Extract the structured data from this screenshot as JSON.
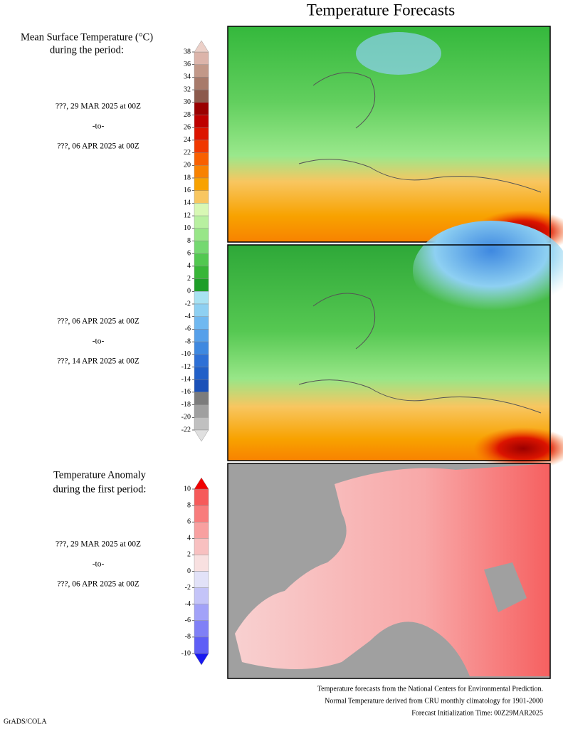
{
  "title": "Temperature Forecasts",
  "temperature_legend": {
    "title_lines": [
      "Mean Surface Temperature (°C)",
      "during the period:"
    ],
    "ticks": [
      38,
      36,
      34,
      32,
      30,
      28,
      26,
      24,
      22,
      20,
      18,
      16,
      14,
      12,
      10,
      8,
      6,
      4,
      2,
      0,
      -2,
      -4,
      -6,
      -8,
      -10,
      -12,
      -14,
      -16,
      -18,
      -20,
      -22
    ],
    "colors": [
      "#dcb4aa",
      "#c29888",
      "#a87a6a",
      "#8c5a4c",
      "#9a0000",
      "#be0000",
      "#dc1400",
      "#f03800",
      "#f86000",
      "#f88200",
      "#f8a200",
      "#f8c660",
      "#d8f8b4",
      "#b8f0a0",
      "#98e688",
      "#74d870",
      "#52c850",
      "#38b638",
      "#1e9e28",
      "#a8e2f2",
      "#8ed0f2",
      "#70b8f0",
      "#56a0ea",
      "#3e88e0",
      "#2e70d6",
      "#2260c8",
      "#1a50b8",
      "#7c7c7c",
      "#a0a0a0",
      "#c0c0c0"
    ],
    "above_color": "#ecd0c8",
    "below_color": "#e0e0e0"
  },
  "periods": [
    {
      "start": "???, 29 MAR 2025 at 00Z",
      "separator": "-to-",
      "end": "???, 06 APR 2025 at 00Z"
    },
    {
      "start": "???, 06 APR 2025 at 00Z",
      "separator": "-to-",
      "end": "???, 14 APR 2025 at 00Z"
    }
  ],
  "anomaly_legend": {
    "title_lines": [
      "Temperature Anomaly",
      "during the first period:"
    ],
    "ticks": [
      10,
      8,
      6,
      4,
      2,
      0,
      -2,
      -4,
      -6,
      -8,
      -10
    ],
    "colors": [
      "#f65a5a",
      "#f87c7c",
      "#f8a0a0",
      "#f8c0c0",
      "#f8e0e0",
      "#e2e2f8",
      "#c4c4f8",
      "#a2a2f8",
      "#8080f6",
      "#5e5ef6"
    ],
    "above_color": "#f00000",
    "below_color": "#1818f0"
  },
  "anomaly_period": {
    "start": "???, 29 MAR 2025 at 00Z",
    "separator": "-to-",
    "end": "???, 06 APR 2025 at 00Z"
  },
  "footer_notes": [
    "Temperature forecasts from the National Centers for Environmental Prediction.",
    "Normal Temperature derived from CRU monthly climatology for 1901-2000",
    "Forecast Initialization Time: 00Z29MAR2025"
  ],
  "credit": "GrADS/COLA"
}
